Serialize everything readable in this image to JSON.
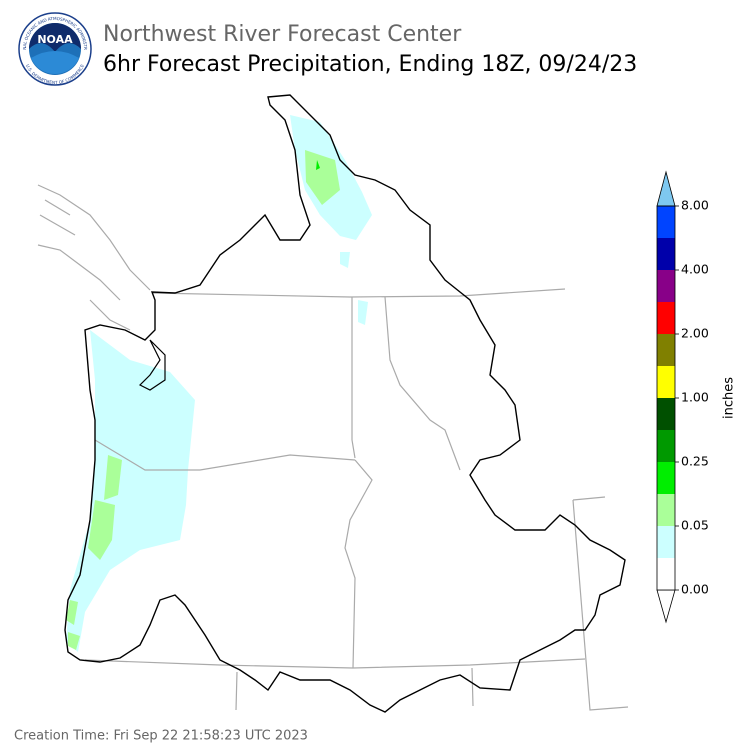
{
  "header": {
    "agency": "Northwest River Forecast Center",
    "title": "6hr Forecast Precipitation, Ending 18Z, 09/24/23"
  },
  "logo": {
    "text": "NOAA",
    "ring_top": "NATIONAL OCEANIC AND ATMOSPHERIC ADMINISTRATION",
    "ring_bottom": "U.S. DEPARTMENT OF COMMERCE"
  },
  "colorbar": {
    "label": "inches",
    "under_color": "#ffffff",
    "over_color": "#7ec8f0",
    "colors": [
      "#ffffff",
      "#ccffff",
      "#aaff99",
      "#00ee00",
      "#009900",
      "#005000",
      "#ffff00",
      "#808000",
      "#ff0000",
      "#880088",
      "#0000aa",
      "#0044ff"
    ],
    "ticks": [
      {
        "value": 0,
        "label": "0.00"
      },
      {
        "value": 0.05,
        "label": "0.05"
      },
      {
        "value": 0.25,
        "label": "0.25"
      },
      {
        "value": 1,
        "label": "1.00"
      },
      {
        "value": 2,
        "label": "2.00"
      },
      {
        "value": 4,
        "label": "4.00"
      },
      {
        "value": 8,
        "label": "8.00"
      }
    ]
  },
  "footer": {
    "creation_time": "Creation Time: Fri Sep 22 21:58:23 UTC 2023"
  }
}
